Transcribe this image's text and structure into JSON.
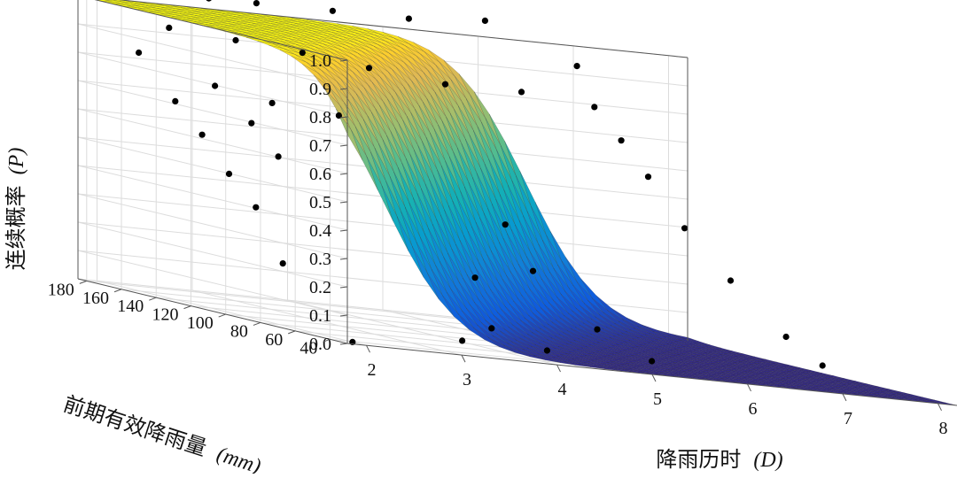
{
  "chart_data": {
    "type": "surface3d",
    "zlabel_text": "连续概率",
    "zlabel_symbol": "(P)",
    "xlabel_text": "降雨历时",
    "xlabel_symbol": "(D)",
    "ylabel_text": "前期有效降雨量",
    "ylabel_symbol": "(mm)",
    "z_ticks": [
      "0.0",
      "0.1",
      "0.2",
      "0.3",
      "0.4",
      "0.5",
      "0.6",
      "0.7",
      "0.8",
      "0.9",
      "1.0"
    ],
    "x_ticks": [
      "2",
      "3",
      "4",
      "5",
      "6",
      "7",
      "8"
    ],
    "y_ticks": [
      "40",
      "60",
      "80",
      "100",
      "120",
      "140",
      "160",
      "180"
    ],
    "xlim": [
      1.8,
      8.2
    ],
    "ylim": [
      30,
      185
    ],
    "zlim": [
      0,
      1.0
    ],
    "grid": true,
    "colormap": "parula",
    "surface": "logistic decreasing in rainfall duration D, increasing in antecedent rainfall",
    "points": [
      {
        "x": 2.0,
        "y": 38,
        "z": 0.0
      },
      {
        "x": 2.9,
        "y": 170,
        "z": 1.05
      },
      {
        "x": 3.4,
        "y": 170,
        "z": 1.05
      },
      {
        "x": 4.2,
        "y": 170,
        "z": 1.05
      },
      {
        "x": 5.0,
        "y": 170,
        "z": 1.05
      },
      {
        "x": 5.8,
        "y": 170,
        "z": 1.07
      },
      {
        "x": 2.3,
        "y": 160,
        "z": 0.94
      },
      {
        "x": 3.0,
        "y": 160,
        "z": 0.92
      },
      {
        "x": 3.7,
        "y": 160,
        "z": 0.9
      },
      {
        "x": 4.4,
        "y": 160,
        "z": 0.87
      },
      {
        "x": 5.2,
        "y": 160,
        "z": 0.84
      },
      {
        "x": 6.0,
        "y": 160,
        "z": 0.84
      },
      {
        "x": 1.8,
        "y": 150,
        "z": 0.85
      },
      {
        "x": 2.6,
        "y": 150,
        "z": 0.76
      },
      {
        "x": 3.2,
        "y": 150,
        "z": 0.72
      },
      {
        "x": 3.9,
        "y": 150,
        "z": 0.7
      },
      {
        "x": 2.0,
        "y": 140,
        "z": 0.7
      },
      {
        "x": 2.1,
        "y": 130,
        "z": 0.6
      },
      {
        "x": 2.2,
        "y": 120,
        "z": 0.48
      },
      {
        "x": 2.3,
        "y": 110,
        "z": 0.38
      },
      {
        "x": 2.4,
        "y": 100,
        "z": 0.2
      },
      {
        "x": 2.8,
        "y": 140,
        "z": 0.65
      },
      {
        "x": 2.9,
        "y": 130,
        "z": 0.55
      },
      {
        "x": 6.4,
        "y": 150,
        "z": 0.96
      },
      {
        "x": 6.4,
        "y": 140,
        "z": 0.83
      },
      {
        "x": 6.5,
        "y": 130,
        "z": 0.73
      },
      {
        "x": 6.6,
        "y": 120,
        "z": 0.62
      },
      {
        "x": 6.8,
        "y": 110,
        "z": 0.46
      },
      {
        "x": 7.1,
        "y": 100,
        "z": 0.3
      },
      {
        "x": 7.5,
        "y": 90,
        "z": 0.13
      },
      {
        "x": 7.7,
        "y": 80,
        "z": 0.05
      },
      {
        "x": 5.1,
        "y": 120,
        "z": 0.4
      },
      {
        "x": 5.3,
        "y": 115,
        "z": 0.25
      },
      {
        "x": 4.6,
        "y": 110,
        "z": 0.21
      },
      {
        "x": 5.7,
        "y": 100,
        "z": 0.08
      },
      {
        "x": 4.5,
        "y": 95,
        "z": 0.05
      },
      {
        "x": 4.1,
        "y": 90,
        "z": 0.0
      },
      {
        "x": 4.9,
        "y": 85,
        "z": 0.0
      },
      {
        "x": 6.0,
        "y": 85,
        "z": 0.0
      }
    ]
  }
}
